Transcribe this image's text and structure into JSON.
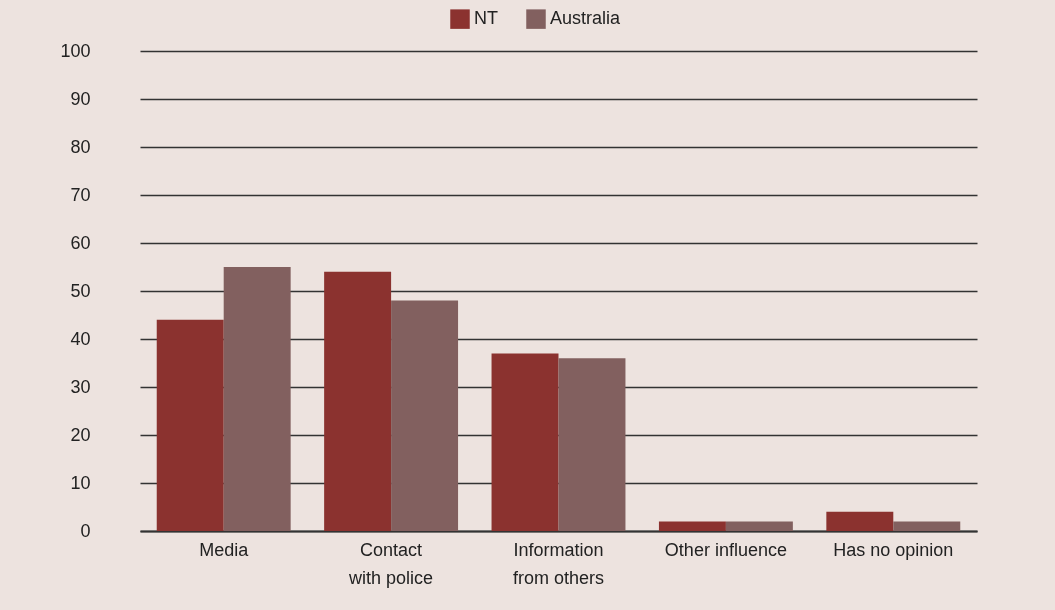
{
  "chart_data": {
    "type": "bar",
    "categories": [
      "Media",
      "Contact with police",
      "Information from others",
      "Other influence",
      "Has no opinion"
    ],
    "series": [
      {
        "name": "NT",
        "color": "#8b322f",
        "values": [
          44,
          54,
          37,
          2,
          4
        ]
      },
      {
        "name": "Australia",
        "color": "#82605f",
        "values": [
          55,
          48,
          36,
          2,
          2
        ]
      }
    ],
    "ylim": [
      0,
      100
    ],
    "yticks": [
      0,
      10,
      20,
      30,
      40,
      50,
      60,
      70,
      80,
      90,
      100
    ],
    "grid": "y",
    "legend": "top"
  }
}
